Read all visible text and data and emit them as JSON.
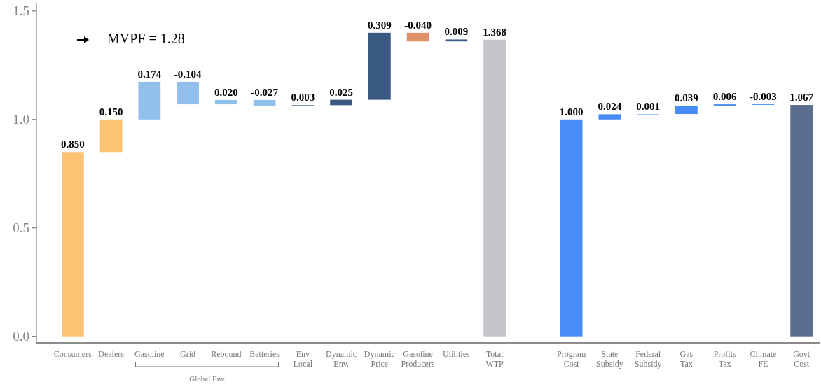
{
  "chart_data": {
    "type": "bar",
    "categories": [
      "Consumers",
      "Dealers",
      "Gasoline",
      "Grid",
      "Rebound",
      "Batteries",
      "Env\nLocal",
      "Dynamic\nEnv.",
      "Dynamic\nPrice",
      "Gasoline\nProducers",
      "Utilities",
      "Total\nWTP",
      null,
      "Program\nCost",
      "State\nSubsidy",
      "Federal\nSubsidy",
      "Gas\nTax",
      "Profits\nTax",
      "Climate\nFE",
      "Govt\nCost"
    ],
    "values": [
      0.85,
      0.15,
      0.174,
      -0.104,
      0.02,
      -0.027,
      0.003,
      0.025,
      0.309,
      -0.04,
      0.009,
      1.368,
      null,
      1.0,
      0.024,
      0.001,
      0.039,
      0.006,
      -0.003,
      1.067
    ],
    "base": [
      0,
      0.85,
      1.0,
      1.174,
      1.07,
      1.09,
      1.063,
      1.066,
      1.091,
      1.4,
      1.36,
      0,
      null,
      0,
      1.0,
      1.024,
      1.025,
      1.064,
      1.07,
      0
    ],
    "colors": [
      "#fdc272",
      "#fdc272",
      "#92c0ed",
      "#92c0ed",
      "#92c0ed",
      "#92c0ed",
      "#3a5a83",
      "#3a5a83",
      "#3a5a83",
      "#e0916a",
      "#3a5a83",
      "#c4c5ca",
      null,
      "#4a8cf5",
      "#4a8cf5",
      "#4a8cf5",
      "#4a8cf5",
      "#4a8cf5",
      "#4a8cf5",
      "#5a6d8e"
    ],
    "value_labels": [
      "0.850",
      "0.150",
      "0.174",
      "-0.104",
      "0.020",
      "-0.027",
      "0.003",
      "0.025",
      "0.309",
      "-0.040",
      "0.009",
      "1.368",
      null,
      "1.000",
      "0.024",
      "0.001",
      "0.039",
      "0.006",
      "-0.003",
      "1.067"
    ],
    "ylim": [
      -0.03,
      1.535
    ],
    "yticks": [
      {
        "value": 0,
        "label": "0.0"
      },
      {
        "value": 0.5,
        "label": "0.5"
      },
      {
        "value": 1,
        "label": "1.0"
      },
      {
        "value": 1.5,
        "label": "1.5"
      }
    ],
    "grid": false,
    "annotations": [
      "MVPF = 1.28",
      "Global Env"
    ]
  }
}
